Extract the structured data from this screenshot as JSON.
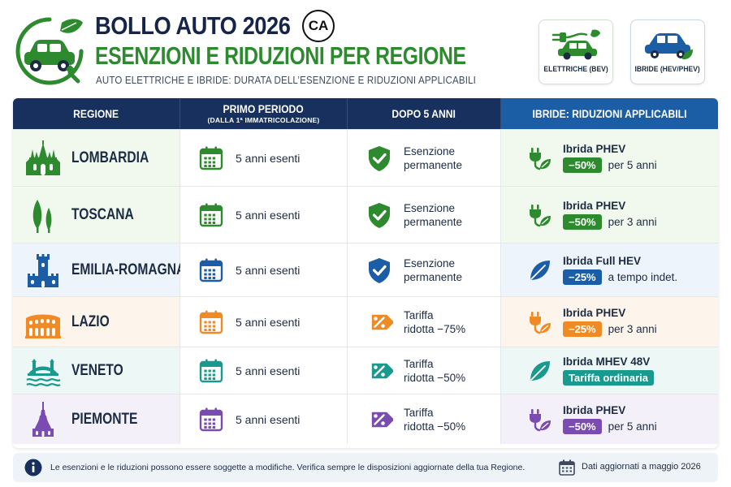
{
  "header": {
    "title_line1": "BOLLO AUTO 2026",
    "brand_badge": "CA",
    "title_line2": "ESENZIONI E RIDUZIONI PER REGIONE",
    "subtitle": "AUTO ELETTRICHE E IBRIDE: DURATA DELL’ESENZIONE E RIDUZIONI APPLICABILI"
  },
  "categories": [
    {
      "label": "ELETTRICHE (BEV)",
      "icon": "ev-car-plug-icon"
    },
    {
      "label": "IBRIDE (HEV/PHEV)",
      "icon": "hybrid-car-leaf-icon"
    }
  ],
  "table": {
    "headers": {
      "region": "REGIONE",
      "first_period": "PRIMO PERIODO",
      "first_period_sub": "(DALLA 1ª IMMATRICOLAZIONE)",
      "after": "DOPO 5 ANNI",
      "hybrid": "IBRIDE: RIDUZIONI APPLICABILI"
    },
    "rows": [
      {
        "region": "LOMBARDIA",
        "region_icon": "milan-cathedral-icon",
        "accent": "#2d8a2e",
        "row_bg": "#f1f8ee",
        "period": "5 anni esenti",
        "status_line1": "Esenzione",
        "status_line2": "permanente",
        "status_icon": "shield-check-icon",
        "hybrid_type": "Ibrida PHEV",
        "hybrid_icon": "plug-leaf-icon",
        "badge": "−50%",
        "badge_note": "per 5 anni"
      },
      {
        "region": "TOSCANA",
        "region_icon": "cypress-trees-icon",
        "accent": "#2d8a2e",
        "row_bg": "#f1f8ee",
        "period": "5 anni esenti",
        "status_line1": "Esenzione",
        "status_line2": "permanente",
        "status_icon": "shield-check-icon",
        "hybrid_type": "Ibrida PHEV",
        "hybrid_icon": "plug-leaf-icon",
        "badge": "−50%",
        "badge_note": "per 3 anni"
      },
      {
        "region": "EMILIA-ROMAGNA",
        "region_icon": "bologna-tower-icon",
        "accent": "#1c5ea6",
        "row_bg": "#eef4fb",
        "period": "5 anni esenti",
        "status_line1": "Esenzione",
        "status_line2": "permanente",
        "status_icon": "shield-check-icon",
        "hybrid_type": "Ibrida Full HEV",
        "hybrid_icon": "leaf-icon",
        "badge": "−25%",
        "badge_note": "a tempo indet."
      },
      {
        "region": "LAZIO",
        "region_icon": "colosseum-icon",
        "accent": "#f08a24",
        "row_bg": "#fdf5ec",
        "period": "5 anni esenti",
        "status_line1": "Tariffa",
        "status_line2": "ridotta −75%",
        "status_icon": "discount-tag-icon",
        "hybrid_type": "Ibrida PHEV",
        "hybrid_icon": "plug-leaf-icon",
        "badge": "−25%",
        "badge_note": "per 3 anni"
      },
      {
        "region": "VENETO",
        "region_icon": "venice-bridge-icon",
        "accent": "#1a9a8f",
        "row_bg": "#edf7f6",
        "period": "5 anni esenti",
        "status_line1": "Tariffa",
        "status_line2": "ridotta −50%",
        "status_icon": "discount-tag-icon",
        "hybrid_type": "Ibrida MHEV 48V",
        "hybrid_icon": "leaf-icon",
        "badge": "Tariffa ordinaria",
        "badge_note": ""
      },
      {
        "region": "PIEMONTE",
        "region_icon": "mole-antonelliana-icon",
        "accent": "#7a4bb0",
        "row_bg": "#f4f0fa",
        "period": "5 anni esenti",
        "status_line1": "Tariffa",
        "status_line2": "ridotta −50%",
        "status_icon": "discount-tag-icon",
        "hybrid_type": "Ibrida PHEV",
        "hybrid_icon": "plug-leaf-icon",
        "badge": "−50%",
        "badge_note": "per 5 anni"
      }
    ]
  },
  "footer": {
    "note": "Le esenzioni e le riduzioni possono essere soggette a modifiche. Verifica sempre le disposizioni aggiornate della tua Regione.",
    "updated": "Dati aggiornati a maggio 2026"
  },
  "colors": {
    "navy": "#17305e",
    "blue": "#1c5ea6",
    "green": "#2d8a2e",
    "orange": "#f08a24",
    "teal": "#1a9a8f",
    "purple": "#7a4bb0"
  }
}
